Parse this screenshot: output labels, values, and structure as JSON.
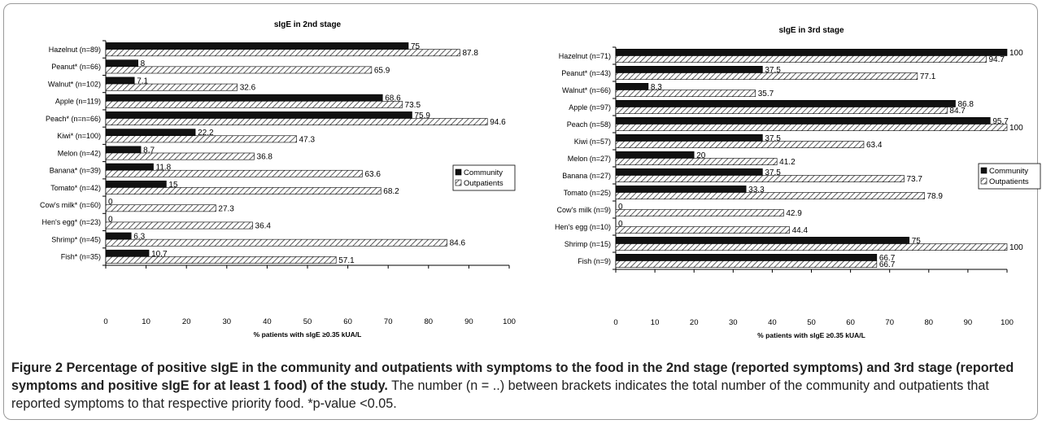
{
  "chart_data": [
    {
      "type": "bar",
      "orientation": "horizontal",
      "title": "sIgE in 2nd stage",
      "xlabel": "% patients with sIgE ≥0.35 kUA/L",
      "ylabel": "",
      "xlim": [
        0,
        100
      ],
      "xticks": [
        0,
        10,
        20,
        30,
        40,
        50,
        60,
        70,
        80,
        90,
        100
      ],
      "grid": false,
      "legend_position": "right",
      "categories": [
        "Hazelnut (n=89)",
        "Peanut* (n=66)",
        "Walnut* (n=102)",
        "Apple (n=119)",
        "Peach* (n=n=66)",
        "Kiwi* (n=100)",
        "Melon (n=42)",
        "Banana* (n=39)",
        "Tomato* (n=42)",
        "Cow's milk* (n=60)",
        "Hen's egg* (n=23)",
        "Shrimp* (n=45)",
        "Fish* (n=35)"
      ],
      "series": [
        {
          "name": "Community",
          "color": "#111111",
          "pattern": "solid",
          "values": [
            75,
            8,
            7.1,
            68.6,
            75.9,
            22.2,
            8.7,
            11.8,
            15,
            0,
            0,
            6.3,
            10.7
          ],
          "labels": [
            "75",
            "8",
            "7.1",
            "68.6",
            "75.9",
            "22.2",
            "8.7",
            "11.8",
            "15",
            "0",
            "0",
            "6.3",
            "10.7"
          ]
        },
        {
          "name": "Outpatients",
          "color": "#555555",
          "pattern": "hatched",
          "values": [
            87.8,
            65.9,
            32.6,
            73.5,
            94.6,
            47.3,
            36.8,
            63.6,
            68.2,
            27.3,
            36.4,
            84.6,
            57.1
          ],
          "labels": [
            "87.8",
            "65.9",
            "32.6",
            "73.5",
            "94.6",
            "47.3",
            "36.8",
            "63.6",
            "68.2",
            "27.3",
            "36.4",
            "84.6",
            "57.1"
          ]
        }
      ]
    },
    {
      "type": "bar",
      "orientation": "horizontal",
      "title": "sIgE in 3rd stage",
      "xlabel": "% patients with sIgE ≥0.35 kUA/L",
      "ylabel": "",
      "xlim": [
        0,
        100
      ],
      "xticks": [
        0,
        10,
        20,
        30,
        40,
        50,
        60,
        70,
        80,
        90,
        100
      ],
      "grid": false,
      "legend_position": "right",
      "categories": [
        "Hazelnut (n=71)",
        "Peanut* (n=43)",
        "Walnut* (n=66)",
        "Apple (n=97)",
        "Peach (n=58)",
        "Kiwi (n=57)",
        "Melon (n=27)",
        "Banana (n=27)",
        "Tomato (n=25)",
        "Cow's milk (n=9)",
        "Hen's egg (n=10)",
        "Shrimp (n=15)",
        "Fish (n=9)"
      ],
      "series": [
        {
          "name": "Community",
          "color": "#111111",
          "pattern": "solid",
          "values": [
            100,
            37.5,
            8.3,
            86.8,
            95.7,
            37.5,
            20,
            37.5,
            33.3,
            0,
            0,
            75,
            66.7
          ],
          "labels": [
            "100",
            "37.5",
            "8.3",
            "86.8",
            "95.7",
            "37.5",
            "20",
            "37.5",
            "33.3",
            "0",
            "0",
            "75",
            "66.7"
          ]
        },
        {
          "name": "Outpatients",
          "color": "#555555",
          "pattern": "hatched",
          "values": [
            94.7,
            77.1,
            35.7,
            84.7,
            100,
            63.4,
            41.2,
            73.7,
            78.9,
            42.9,
            44.4,
            100,
            66.7
          ],
          "labels": [
            "94.7",
            "77.1",
            "35.7",
            "84.7",
            "100",
            "63.4",
            "41.2",
            "73.7",
            "78.9",
            "42.9",
            "44.4",
            "100",
            "66.7"
          ]
        }
      ]
    }
  ],
  "caption": {
    "bold": "Figure 2 Percentage of positive sIgE in the community and outpatients with symptoms to the food in the 2nd stage (reported symptoms) and 3rd stage (reported symptoms and positive sIgE for at least 1 food) of the study.",
    "text": " The number (n = ..) between brackets indicates the total number of the community and outpatients that reported symptoms to that respective priority food. *p-value <0.05."
  }
}
